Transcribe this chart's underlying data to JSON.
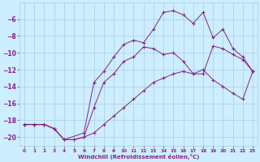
{
  "xlabel": "Windchill (Refroidissement éolien,°C)",
  "background_color": "#cceeff",
  "grid_color": "#aaccdd",
  "line_color": "#882288",
  "xlim": [
    -0.5,
    23.5
  ],
  "ylim": [
    -21,
    -4
  ],
  "xticks": [
    0,
    1,
    2,
    3,
    4,
    5,
    6,
    7,
    8,
    9,
    10,
    11,
    12,
    13,
    14,
    15,
    16,
    17,
    18,
    19,
    20,
    21,
    22,
    23
  ],
  "yticks": [
    -20,
    -18,
    -16,
    -14,
    -12,
    -10,
    -8,
    -6
  ],
  "line1_x": [
    0,
    1,
    2,
    3,
    4,
    5,
    6,
    7,
    8,
    9,
    10,
    11,
    12,
    13,
    14,
    15,
    16,
    17,
    18,
    19,
    20,
    21,
    22,
    23
  ],
  "line1_y": [
    -18.5,
    -18.5,
    -18.5,
    -19.0,
    -20.3,
    -20.3,
    -20.0,
    -16.5,
    -13.5,
    -12.5,
    -11.0,
    -10.5,
    -9.3,
    -9.5,
    -10.2,
    -10.0,
    -11.0,
    -12.5,
    -12.5,
    -9.2,
    -9.5,
    -10.2,
    -10.8,
    -12.2
  ],
  "line2_x": [
    0,
    1,
    2,
    3,
    4,
    6,
    7,
    8,
    9,
    10,
    11,
    12,
    13,
    14,
    15,
    16,
    17,
    18,
    19,
    20,
    21,
    22,
    23
  ],
  "line2_y": [
    -18.5,
    -18.5,
    -18.5,
    -19.0,
    -20.3,
    -19.5,
    -13.5,
    -12.2,
    -10.5,
    -9.0,
    -8.5,
    -8.8,
    -7.2,
    -5.2,
    -5.0,
    -5.5,
    -6.5,
    -5.2,
    -8.2,
    -7.2,
    -9.5,
    -10.5,
    -12.2
  ],
  "line3_x": [
    0,
    1,
    2,
    3,
    4,
    5,
    6,
    7,
    8,
    9,
    10,
    11,
    12,
    13,
    14,
    15,
    16,
    17,
    18,
    19,
    20,
    21,
    22,
    23
  ],
  "line3_y": [
    -18.5,
    -18.5,
    -18.5,
    -19.0,
    -20.3,
    -20.3,
    -20.0,
    -19.5,
    -18.5,
    -17.5,
    -16.5,
    -15.5,
    -14.5,
    -13.5,
    -13.0,
    -12.5,
    -12.2,
    -12.5,
    -12.0,
    -13.2,
    -14.0,
    -14.8,
    -15.5,
    -12.2
  ]
}
